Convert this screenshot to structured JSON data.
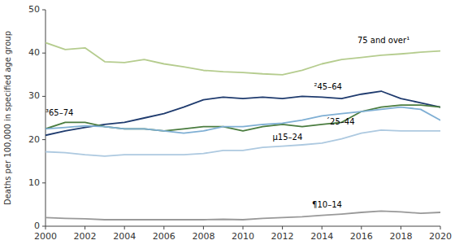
{
  "chart_data": {
    "type": "line",
    "ylabel": "Deaths per 100,000 in specified age group",
    "x": [
      2000,
      2001,
      2002,
      2003,
      2004,
      2005,
      2006,
      2007,
      2008,
      2009,
      2010,
      2011,
      2012,
      2013,
      2014,
      2015,
      2016,
      2017,
      2018,
      2019,
      2020
    ],
    "series": [
      {
        "color": "#b5cc8e",
        "values": [
          42.4,
          40.8,
          41.2,
          38.0,
          37.8,
          38.5,
          37.5,
          36.8,
          36.0,
          35.7,
          35.5,
          35.2,
          35.0,
          36.0,
          37.5,
          38.5,
          39.0,
          39.5,
          39.8,
          40.2,
          40.5
        ]
      },
      {
        "color": "#1f3b6e",
        "values": [
          21.0,
          22.0,
          22.8,
          23.5,
          24.0,
          25.0,
          26.0,
          27.5,
          29.2,
          29.8,
          29.5,
          29.8,
          29.5,
          30.0,
          29.8,
          29.5,
          30.5,
          31.2,
          29.5,
          28.5,
          27.5
        ]
      },
      {
        "color": "#4a7c3f",
        "values": [
          22.5,
          24.0,
          24.0,
          23.0,
          22.5,
          22.5,
          22.0,
          22.5,
          23.0,
          23.0,
          22.0,
          23.0,
          23.5,
          23.0,
          23.5,
          24.0,
          26.5,
          27.5,
          28.0,
          28.0,
          27.5
        ]
      },
      {
        "color": "#7fafd4",
        "values": [
          22.5,
          22.8,
          23.2,
          23.0,
          22.5,
          22.5,
          22.0,
          21.5,
          22.0,
          23.0,
          23.0,
          23.5,
          23.8,
          24.5,
          25.5,
          26.0,
          26.5,
          27.0,
          27.5,
          27.0,
          24.5
        ]
      },
      {
        "color": "#adc9e0",
        "values": [
          17.2,
          17.0,
          16.5,
          16.2,
          16.5,
          16.5,
          16.5,
          16.5,
          16.8,
          17.5,
          17.5,
          18.2,
          18.5,
          18.8,
          19.2,
          20.2,
          21.5,
          22.2,
          22.0,
          22.0,
          22.0
        ]
      },
      {
        "color": "#999999",
        "values": [
          2.0,
          1.8,
          1.7,
          1.5,
          1.5,
          1.5,
          1.5,
          1.5,
          1.5,
          1.6,
          1.5,
          1.8,
          2.0,
          2.2,
          2.5,
          2.8,
          3.2,
          3.5,
          3.3,
          3.0,
          3.2
        ]
      }
    ],
    "annotations": [
      {
        "text": "75 and over¹",
        "x": 2015.8,
        "y": 42.0
      },
      {
        "text": "²45–64",
        "x": 2013.6,
        "y": 31.2
      },
      {
        "text": "³65–74",
        "x": 2000.0,
        "y": 25.2
      },
      {
        "text": "´25–44",
        "x": 2014.2,
        "y": 23.2
      },
      {
        "text": "µ15–24",
        "x": 2011.5,
        "y": 19.5
      },
      {
        "text": "¶10–14",
        "x": 2013.5,
        "y": 4.0
      }
    ],
    "xlim": [
      2000,
      2020
    ],
    "ylim": [
      0,
      50
    ],
    "xticks": [
      2000,
      2002,
      2004,
      2006,
      2008,
      2010,
      2012,
      2014,
      2016,
      2018,
      2020
    ],
    "yticks": [
      0,
      10,
      20,
      30,
      40,
      50
    ],
    "grid": false
  }
}
